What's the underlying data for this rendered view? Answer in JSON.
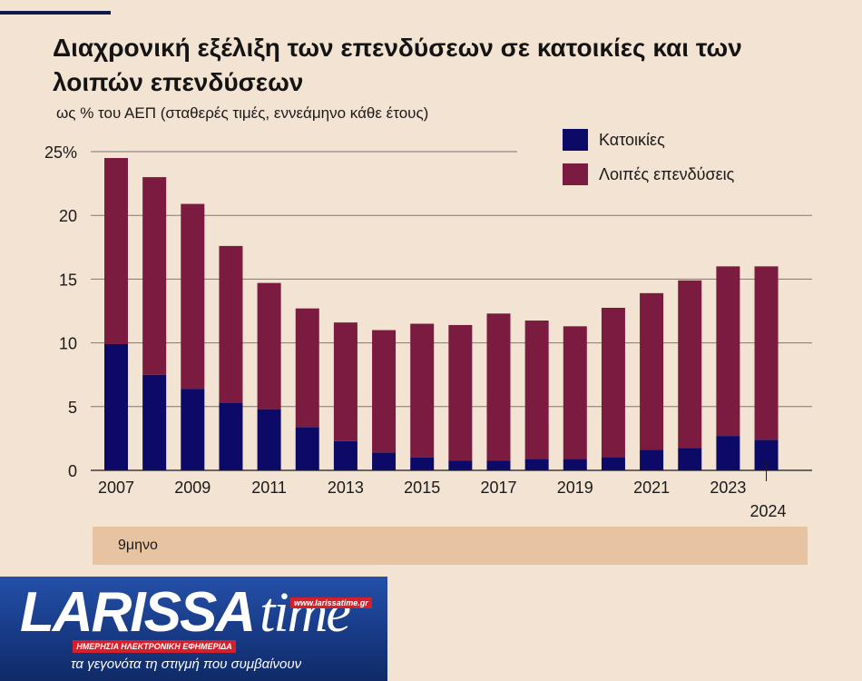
{
  "title": "Διαχρονική εξέλιξη των επενδύσεων σε κατοικίες και των λοιπών επενδύσεων",
  "subtitle": "ως % του ΑΕΠ (σταθερές τιμές, εννεάμηνο κάθε έτους)",
  "footnote": "9μηνο",
  "logo": {
    "name": "LARISSA time",
    "url": "www.larissatime.gr",
    "strip": "ΗΜΕΡΗΣΙΑ ΗΛΕΚΤΡΟΝΙΚΗ ΕΦΗΜΕΡΙΔΑ",
    "tagline": "τα γεγονότα τη στιγμή που συμβαίνουν"
  },
  "chart_data": {
    "type": "bar",
    "stacked": true,
    "categories": [
      "2007",
      "2008",
      "2009",
      "2010",
      "2011",
      "2012",
      "2013",
      "2014",
      "2015",
      "2016",
      "2017",
      "2018",
      "2019",
      "2020",
      "2021",
      "2022",
      "2023",
      "2024"
    ],
    "x_tick_labels": [
      "2007",
      "2009",
      "2011",
      "2013",
      "2015",
      "2017",
      "2019",
      "2021",
      "2023",
      "2024"
    ],
    "series": [
      {
        "name": "Κατοικίες",
        "color": "#0c0a66",
        "values": [
          9.9,
          7.5,
          6.4,
          5.3,
          4.8,
          3.4,
          2.3,
          1.4,
          1.0,
          0.75,
          0.75,
          0.9,
          0.9,
          1.05,
          1.6,
          1.75,
          2.7,
          2.4
        ]
      },
      {
        "name": "Λοιπές επενδύσεις",
        "color": "#7b1b40",
        "values": [
          14.6,
          15.5,
          14.5,
          12.3,
          9.9,
          9.3,
          9.3,
          9.6,
          10.5,
          10.65,
          11.55,
          10.85,
          10.4,
          11.7,
          12.3,
          13.15,
          13.3,
          13.6
        ]
      }
    ],
    "y_ticks": [
      0,
      5,
      10,
      15,
      20,
      25
    ],
    "y_tick_labels": [
      "0",
      "5",
      "10",
      "15",
      "20",
      "25%"
    ],
    "ylim": [
      0,
      25
    ],
    "grid": true,
    "legend": "top-right",
    "colors": {
      "gridline": "#7a7a7a",
      "axis": "#1a1a1a",
      "text": "#1a1a1a"
    }
  }
}
